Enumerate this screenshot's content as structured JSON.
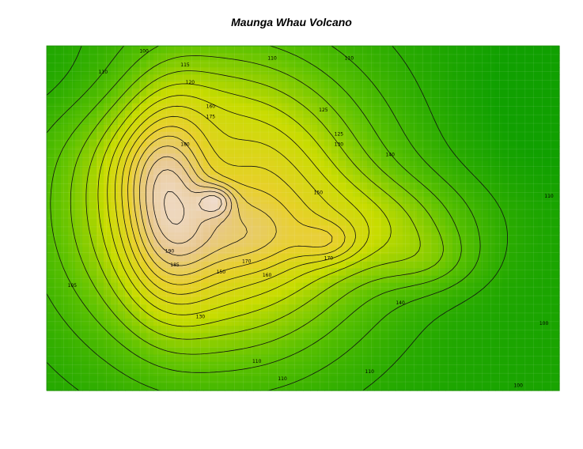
{
  "chart_data": {
    "type": "heatmap",
    "title": "Maunga Whau Volcano",
    "xlabel": "",
    "ylabel": "",
    "colors": [
      "#10a000",
      "#5cc200",
      "#c8dc00",
      "#e8d02a",
      "#e8c890",
      "#f2e2de",
      "#ffffff"
    ],
    "z_range": [
      94,
      195
    ],
    "contour_levels": [
      100,
      105,
      110,
      115,
      120,
      125,
      130,
      135,
      140,
      145,
      150,
      155,
      160,
      165,
      170,
      175,
      180,
      185,
      190
    ],
    "contour_labels": [
      {
        "level": 100,
        "x": 0.19,
        "y": 0.02
      },
      {
        "level": 110,
        "x": 0.11,
        "y": 0.08
      },
      {
        "level": 110,
        "x": 0.44,
        "y": 0.04
      },
      {
        "level": 110,
        "x": 0.59,
        "y": 0.04
      },
      {
        "level": 115,
        "x": 0.27,
        "y": 0.06
      },
      {
        "level": 120,
        "x": 0.28,
        "y": 0.11
      },
      {
        "level": 125,
        "x": 0.54,
        "y": 0.19
      },
      {
        "level": 125,
        "x": 0.57,
        "y": 0.26
      },
      {
        "level": 130,
        "x": 0.57,
        "y": 0.29
      },
      {
        "level": 140,
        "x": 0.67,
        "y": 0.32
      },
      {
        "level": 150,
        "x": 0.53,
        "y": 0.43
      },
      {
        "level": 160,
        "x": 0.32,
        "y": 0.18
      },
      {
        "level": 170,
        "x": 0.39,
        "y": 0.63
      },
      {
        "level": 170,
        "x": 0.55,
        "y": 0.62
      },
      {
        "level": 175,
        "x": 0.32,
        "y": 0.21
      },
      {
        "level": 180,
        "x": 0.27,
        "y": 0.29
      },
      {
        "level": 185,
        "x": 0.25,
        "y": 0.64
      },
      {
        "level": 190,
        "x": 0.24,
        "y": 0.6
      },
      {
        "level": 160,
        "x": 0.43,
        "y": 0.67
      },
      {
        "level": 150,
        "x": 0.34,
        "y": 0.66
      },
      {
        "level": 140,
        "x": 0.69,
        "y": 0.75
      },
      {
        "level": 130,
        "x": 0.3,
        "y": 0.79
      },
      {
        "level": 110,
        "x": 0.41,
        "y": 0.92
      },
      {
        "level": 110,
        "x": 0.63,
        "y": 0.95
      },
      {
        "level": 110,
        "x": 0.46,
        "y": 0.97
      },
      {
        "level": 100,
        "x": 0.92,
        "y": 0.99
      },
      {
        "level": 110,
        "x": 0.98,
        "y": 0.44
      },
      {
        "level": 100,
        "x": 0.97,
        "y": 0.81
      },
      {
        "level": 105,
        "x": 0.05,
        "y": 0.7
      }
    ]
  }
}
